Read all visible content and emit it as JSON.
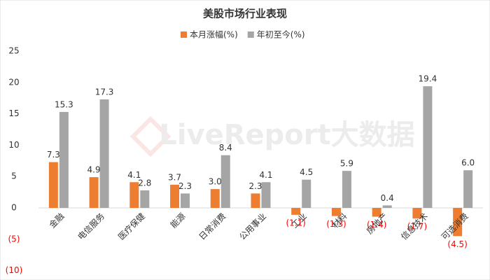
{
  "chart_data": {
    "type": "bar",
    "title": "美股市场行业表现",
    "watermark": "LiveReport大数据",
    "categories": [
      "金融",
      "电信服务",
      "医疗保健",
      "能源",
      "日常消费",
      "公用事业",
      "工业",
      "材料",
      "房地产",
      "信息技术",
      "可选消费"
    ],
    "series": [
      {
        "name": "本月涨幅(%)",
        "color": "#ed7d31",
        "values": [
          7.3,
          4.9,
          4.1,
          3.7,
          3.0,
          2.3,
          -1.1,
          -1.3,
          -1.4,
          -1.7,
          -4.5
        ],
        "value_labels": [
          "7.3",
          "4.9",
          "4.1",
          "3.7",
          "3.0",
          "2.3",
          "(1.1)",
          "(1.3)",
          "(1.4)",
          "(1.7)",
          "(4.5)"
        ]
      },
      {
        "name": "年初至今(%)",
        "color": "#a5a5a5",
        "values": [
          15.3,
          17.3,
          2.8,
          2.3,
          8.4,
          4.1,
          4.5,
          5.9,
          0.4,
          19.4,
          6.0
        ],
        "value_labels": [
          "15.3",
          "17.3",
          "2.8",
          "2.3",
          "8.4",
          "4.1",
          "4.5",
          "5.9",
          "0.4",
          "19.4",
          "6.0"
        ]
      }
    ],
    "ylim": [
      -10,
      25
    ],
    "yticks": [
      {
        "value": -10,
        "label": "(10)"
      },
      {
        "value": -5,
        "label": "(5)"
      },
      0,
      5,
      10,
      15,
      20,
      25
    ],
    "negative_color": "#ff0000",
    "grid": false,
    "legend": "top"
  }
}
